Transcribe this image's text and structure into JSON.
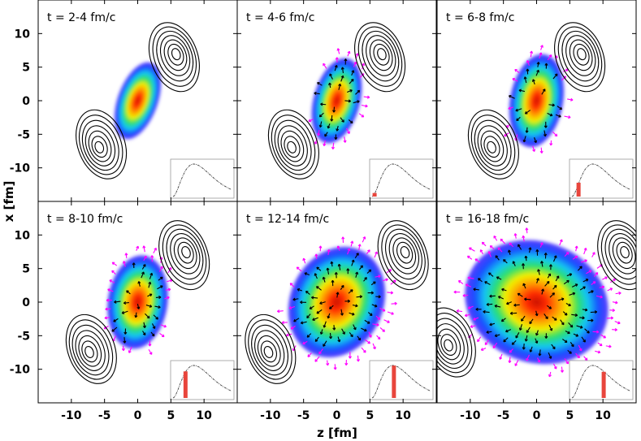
{
  "chart_data": {
    "type": "heatmap",
    "layout": "2x3 grid of panels with shared axes",
    "xlabel": "z [fm]",
    "ylabel": "x [fm]",
    "xticks": [
      -10,
      -5,
      0,
      5,
      10
    ],
    "yticks": [
      10,
      5,
      0,
      -5,
      -10
    ],
    "xlim": [
      -15,
      15
    ],
    "ylim": [
      -15,
      15
    ],
    "colormap": "blue-cyan-green-yellow-red (low to high density)",
    "colors": {
      "flow_arrow_outer": "#ff00ff",
      "flow_arrow_inner": "#000000",
      "contour": "#000000",
      "inset_bar": "#e8453c",
      "inset_curve": "#444444"
    },
    "panels": [
      {
        "label": "t = 2-4 fm/c",
        "time_range_fmc": [
          2,
          4
        ],
        "blob": {
          "center": [
            0,
            0
          ],
          "semi_axes": [
            3,
            6
          ],
          "tilt_deg": 20
        },
        "nuclei": [
          {
            "center": [
              5.5,
              6.5
            ],
            "tilt_deg": 20
          },
          {
            "center": [
              -5.5,
              -6.5
            ],
            "tilt_deg": 20
          }
        ],
        "inset_bar_fraction": 0.0
      },
      {
        "label": "t = 4-6 fm/c",
        "time_range_fmc": [
          4,
          6
        ],
        "blob": {
          "center": [
            0,
            0
          ],
          "semi_axes": [
            3.5,
            6.5
          ],
          "tilt_deg": 15
        },
        "nuclei": [
          {
            "center": [
              6.5,
              6.5
            ],
            "tilt_deg": 20
          },
          {
            "center": [
              -6.5,
              -6.5
            ],
            "tilt_deg": 20
          }
        ],
        "inset_bar_fraction": 0.05
      },
      {
        "label": "t = 6-8 fm/c",
        "time_range_fmc": [
          6,
          8
        ],
        "blob": {
          "center": [
            0,
            0
          ],
          "semi_axes": [
            4,
            7
          ],
          "tilt_deg": 10
        },
        "nuclei": [
          {
            "center": [
              6.5,
              6.5
            ],
            "tilt_deg": 20
          },
          {
            "center": [
              -6.5,
              -6.5
            ],
            "tilt_deg": 20
          }
        ],
        "inset_bar_fraction": 0.12
      },
      {
        "label": "t = 8-10 fm/c",
        "time_range_fmc": [
          8,
          10
        ],
        "blob": {
          "center": [
            0,
            0
          ],
          "semi_axes": [
            4.5,
            7
          ],
          "tilt_deg": 8
        },
        "nuclei": [
          {
            "center": [
              7,
              7
            ],
            "tilt_deg": 20
          },
          {
            "center": [
              -7,
              -7
            ],
            "tilt_deg": 20
          }
        ],
        "inset_bar_fraction": 0.22
      },
      {
        "label": "t = 12-14 fm/c",
        "time_range_fmc": [
          12,
          14
        ],
        "blob": {
          "center": [
            0,
            0
          ],
          "semi_axes": [
            7,
            8.5
          ],
          "tilt_deg": 25
        },
        "nuclei": [
          {
            "center": [
              10,
              7
            ],
            "tilt_deg": 20
          },
          {
            "center": [
              -10,
              -7
            ],
            "tilt_deg": 20
          }
        ],
        "inset_bar_fraction": 0.38
      },
      {
        "label": "t = 16-18 fm/c",
        "time_range_fmc": [
          16,
          18
        ],
        "blob": {
          "center": [
            0,
            0
          ],
          "semi_axes": [
            11,
            9
          ],
          "tilt_deg": 20
        },
        "nuclei": [
          {
            "center": [
              13,
              7
            ],
            "tilt_deg": 20
          },
          {
            "center": [
              -13,
              -6
            ],
            "tilt_deg": 20
          }
        ],
        "inset_bar_fraction": 0.55
      }
    ]
  }
}
